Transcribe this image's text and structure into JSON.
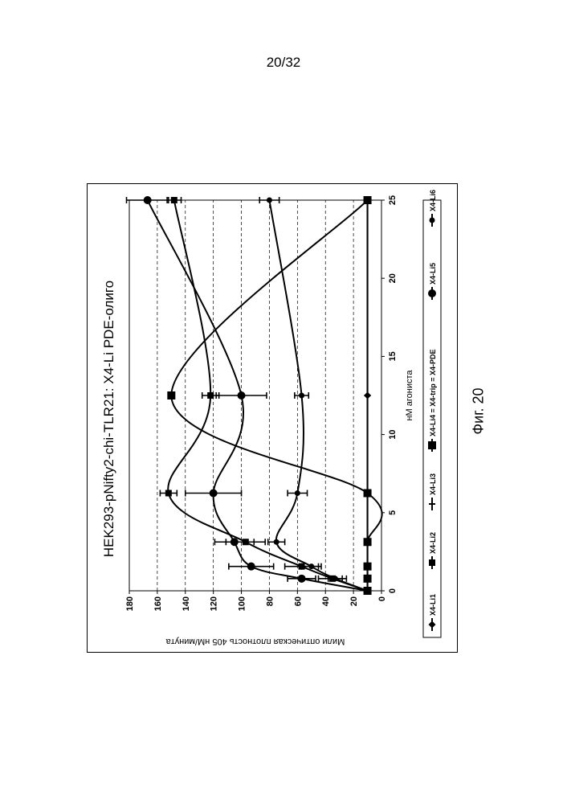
{
  "page": {
    "number": "20/32",
    "caption": "Фиг. 20"
  },
  "chart_data": {
    "type": "line",
    "title": "HEK293-pNifty2-chi-TLR21: X4-Li PDE-олиго",
    "xlabel": "нМ агониста",
    "ylabel": "Мили оптическая плотность 405 нМ/минута",
    "xlim": [
      0,
      25
    ],
    "ylim": [
      0,
      180
    ],
    "x_ticks": [
      0,
      5,
      10,
      15,
      20,
      25
    ],
    "y_ticks": [
      0,
      20,
      40,
      60,
      80,
      100,
      120,
      140,
      160,
      180
    ],
    "grid": "horizontal dashed",
    "legend_position": "bottom",
    "orientation": "page rotated 90° counter-clockwise",
    "x": [
      0,
      0.78,
      1.56,
      3.125,
      6.25,
      12.5,
      25
    ],
    "series": [
      {
        "name": "X4-Li1",
        "marker": "diamond",
        "values": [
          10,
          10,
          10,
          10,
          10,
          10,
          10
        ]
      },
      {
        "name": "X4-Li2",
        "marker": "square",
        "values": [
          10,
          35,
          57,
          97,
          152,
          122,
          148
        ],
        "err": [
          0,
          10,
          12,
          14,
          6,
          6,
          5
        ]
      },
      {
        "name": "X4-Li3",
        "marker": "plus",
        "values": [
          10,
          10,
          10,
          10,
          10,
          10,
          10
        ]
      },
      {
        "name": "X4-Li4 = X4-trip = X4-PDE",
        "marker": "big-square",
        "values": [
          10,
          10,
          10,
          10,
          10,
          150,
          10
        ]
      },
      {
        "name": "X4-Li5",
        "marker": "circle",
        "values": [
          10,
          57,
          93,
          105,
          120,
          100,
          167
        ],
        "err": [
          0,
          10,
          16,
          14,
          20,
          18,
          15
        ]
      },
      {
        "name": "X4-Li6",
        "marker": "circle-small",
        "values": [
          10,
          33,
          50,
          75,
          60,
          57,
          80
        ],
        "err": [
          0,
          5,
          7,
          6,
          7,
          5,
          7
        ]
      }
    ]
  }
}
